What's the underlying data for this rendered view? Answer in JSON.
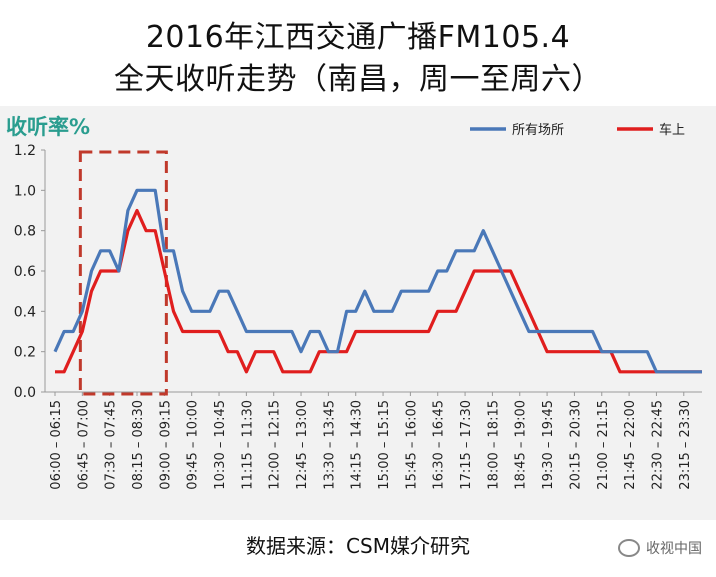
{
  "title_line1": "2016年江西交通广播FM105.4",
  "title_line2": "全天收听走势（南昌，周一至周六）",
  "source": "数据来源：CSM媒介研究",
  "watermark": "收视中国",
  "chart_data": {
    "type": "line",
    "ylabel": "收听率%",
    "ylim": [
      0,
      1.2
    ],
    "yticks": [
      "0.0",
      "0.2",
      "0.4",
      "0.6",
      "0.8",
      "1.0",
      "1.2"
    ],
    "grid": false,
    "legend_position": "top-right",
    "x": [
      "06:00 - 06:15",
      "06:15 - 06:30",
      "06:30 - 06:45",
      "06:45 - 07:00",
      "07:00 - 07:15",
      "07:15 - 07:30",
      "07:30 - 07:45",
      "07:45 - 08:00",
      "08:00 - 08:15",
      "08:15 - 08:30",
      "08:30 - 08:45",
      "08:45 - 09:00",
      "09:00 - 09:15",
      "09:15 - 09:30",
      "09:30 - 09:45",
      "09:45 - 10:00",
      "10:00 - 10:15",
      "10:15 - 10:30",
      "10:30 - 10:45",
      "10:45 - 11:00",
      "11:00 - 11:15",
      "11:15 - 11:30",
      "11:30 - 11:45",
      "11:45 - 12:00",
      "12:00 - 12:15",
      "12:15 - 12:30",
      "12:30 - 12:45",
      "12:45 - 13:00",
      "13:00 - 13:15",
      "13:15 - 13:30",
      "13:30 - 13:45",
      "13:45 - 14:00",
      "14:00 - 14:15",
      "14:15 - 14:30",
      "14:30 - 14:45",
      "14:45 - 15:00",
      "15:00 - 15:15",
      "15:15 - 15:30",
      "15:30 - 15:45",
      "15:45 - 16:00",
      "16:00 - 16:15",
      "16:15 - 16:30",
      "16:30 - 16:45",
      "16:45 - 17:00",
      "17:00 - 17:15",
      "17:15 - 17:30",
      "17:30 - 17:45",
      "17:45 - 18:00",
      "18:00 - 18:15",
      "18:15 - 18:30",
      "18:30 - 18:45",
      "18:45 - 19:00",
      "19:00 - 19:15",
      "19:15 - 19:30",
      "19:30 - 19:45",
      "19:45 - 20:00",
      "20:00 - 20:15",
      "20:15 - 20:30",
      "20:30 - 20:45",
      "20:45 - 21:00",
      "21:00 - 21:15",
      "21:15 - 21:30",
      "21:30 - 21:45",
      "21:45 - 22:00",
      "22:00 - 22:15",
      "22:15 - 22:30",
      "22:30 - 22:45",
      "22:45 - 23:00",
      "23:00 - 23:15",
      "23:15 - 23:30",
      "23:30 - 23:45",
      "23:45 - 24:00"
    ],
    "x_tick_labels": [
      "06:00 – 06:15",
      "06:45 – 07:00",
      "07:30 – 07:45",
      "08:15 – 08:30",
      "09:00 – 09:15",
      "09:45 – 10:00",
      "10:30 – 10:45",
      "11:15 – 11:30",
      "12:00 – 12:15",
      "12:45 – 13:00",
      "13:30 – 13:45",
      "14:15 – 14:30",
      "15:00 – 15:15",
      "15:45 – 16:00",
      "16:30 – 16:45",
      "17:15 – 17:30",
      "18:00 – 18:15",
      "18:45 – 19:00",
      "19:30 – 19:45",
      "20:15 – 20:30",
      "21:00 – 21:15",
      "21:45 – 22:00",
      "22:30 – 22:45",
      "23:15 – 23:30"
    ],
    "x_tick_every": 3,
    "series": [
      {
        "name": "所有场所",
        "color": "#4a78b8",
        "values": [
          0.2,
          0.3,
          0.3,
          0.4,
          0.6,
          0.7,
          0.7,
          0.6,
          0.9,
          1.0,
          1.0,
          1.0,
          0.7,
          0.7,
          0.5,
          0.4,
          0.4,
          0.4,
          0.5,
          0.5,
          0.4,
          0.3,
          0.3,
          0.3,
          0.3,
          0.3,
          0.3,
          0.2,
          0.3,
          0.3,
          0.2,
          0.2,
          0.4,
          0.4,
          0.5,
          0.4,
          0.4,
          0.4,
          0.5,
          0.5,
          0.5,
          0.5,
          0.6,
          0.6,
          0.7,
          0.7,
          0.7,
          0.8,
          0.7,
          0.6,
          0.5,
          0.4,
          0.3,
          0.3,
          0.3,
          0.3,
          0.3,
          0.3,
          0.3,
          0.3,
          0.2,
          0.2,
          0.2,
          0.2,
          0.2,
          0.2,
          0.1,
          0.1,
          0.1,
          0.1,
          0.1,
          0.1
        ]
      },
      {
        "name": "车上",
        "color": "#e01e1e",
        "values": [
          0.1,
          0.1,
          0.2,
          0.3,
          0.5,
          0.6,
          0.6,
          0.6,
          0.8,
          0.9,
          0.8,
          0.8,
          0.6,
          0.4,
          0.3,
          0.3,
          0.3,
          0.3,
          0.3,
          0.2,
          0.2,
          0.1,
          0.2,
          0.2,
          0.2,
          0.1,
          0.1,
          0.1,
          0.1,
          0.2,
          0.2,
          0.2,
          0.2,
          0.3,
          0.3,
          0.3,
          0.3,
          0.3,
          0.3,
          0.3,
          0.3,
          0.3,
          0.4,
          0.4,
          0.4,
          0.5,
          0.6,
          0.6,
          0.6,
          0.6,
          0.6,
          0.5,
          0.4,
          0.3,
          0.2,
          0.2,
          0.2,
          0.2,
          0.2,
          0.2,
          0.2,
          0.2,
          0.1,
          0.1,
          0.1,
          0.1,
          0.1,
          0.1,
          0.1,
          0.1,
          0.1,
          0.1
        ]
      }
    ],
    "highlight": {
      "from_index": 3,
      "to_index": 12,
      "color": "#c0392b",
      "style": "dashed"
    },
    "ylabel_color": "#2a9d8f"
  }
}
